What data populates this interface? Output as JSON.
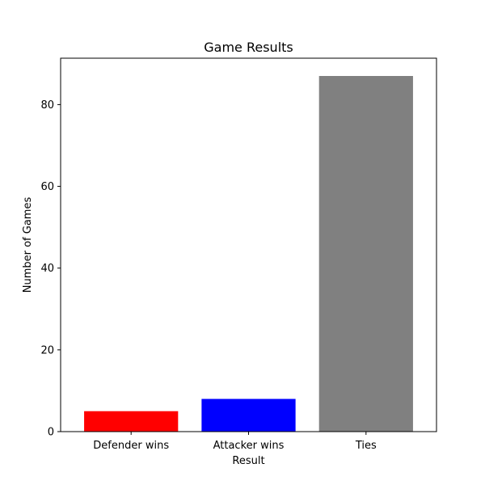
{
  "chart_data": {
    "type": "bar",
    "title": "Game Results",
    "xlabel": "Result",
    "ylabel": "Number of Games",
    "categories": [
      "Defender wins",
      "Attacker wins",
      "Ties"
    ],
    "values": [
      5,
      8,
      87
    ],
    "colors": [
      "#ff0000",
      "#0000ff",
      "#808080"
    ],
    "ylim": [
      0,
      91.35
    ],
    "yticks": [
      0,
      20,
      40,
      60,
      80
    ],
    "grid": false,
    "legend": "none"
  }
}
